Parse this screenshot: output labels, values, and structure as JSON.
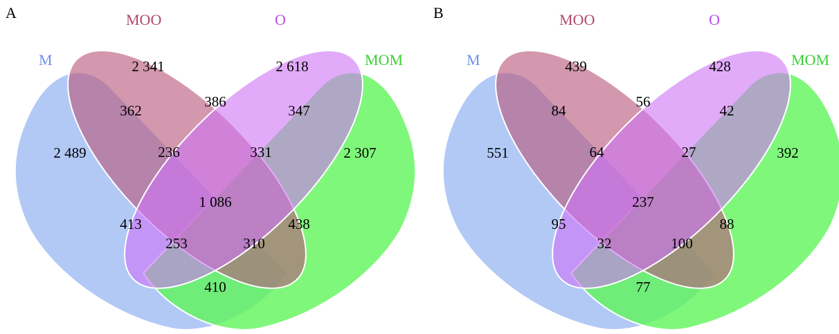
{
  "set_colors": {
    "M": "#a4c0f4",
    "MOO": "#c97992",
    "O": "#da8cf8",
    "MOM": "#7ef27a"
  },
  "panels": [
    {
      "letter": "A",
      "set_labels": {
        "M": "M",
        "MOO": "MOO",
        "O": "O",
        "MOM": "MOM"
      },
      "regions": {
        "M": "2 489",
        "MOO": "2 341",
        "O": "2 618",
        "MOM": "2 307",
        "M_MOO": "362",
        "MOO_O": "386",
        "O_MOM": "347",
        "M_O": "413",
        "MOO_MOM": "438",
        "M_MOO_O": "236",
        "MOO_O_MOM": "331",
        "M_MOO_O_MOM": "1 086",
        "M_O_MOM": "253",
        "M_MOO_MOM": "310",
        "M_MOM": "410"
      }
    },
    {
      "letter": "B",
      "set_labels": {
        "M": "M",
        "MOO": "MOO",
        "O": "O",
        "MOM": "MOM"
      },
      "regions": {
        "M": "551",
        "MOO": "439",
        "O": "428",
        "MOM": "392",
        "M_MOO": "84",
        "MOO_O": "56",
        "O_MOM": "42",
        "M_O": "95",
        "MOO_MOM": "88",
        "M_MOO_O": "64",
        "MOO_O_MOM": "27",
        "M_MOO_O_MOM": "237",
        "M_O_MOM": "32",
        "M_MOO_MOM": "100",
        "M_MOM": "77"
      }
    }
  ]
}
